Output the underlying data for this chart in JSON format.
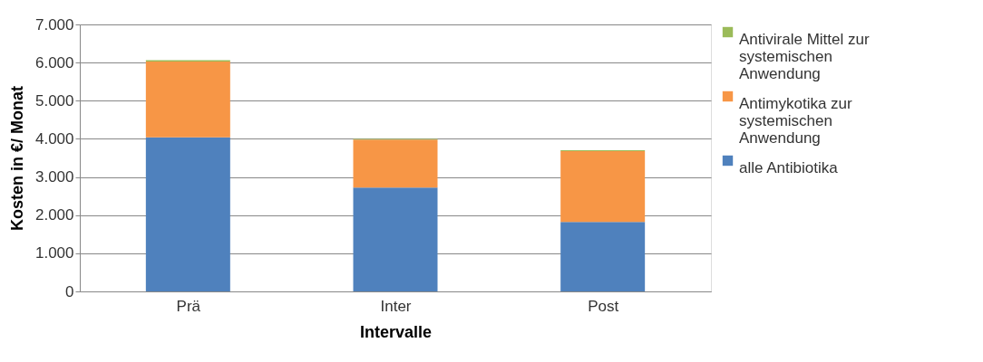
{
  "chart_data": {
    "type": "bar",
    "stacked": true,
    "xlabel": "Intervalle",
    "ylabel": "Kosten in €/ Monat",
    "categories": [
      "Prä",
      "Inter",
      "Post"
    ],
    "series": [
      {
        "name": "alle Antibiotika",
        "color": "#4f81bd",
        "values": [
          4040,
          2720,
          1820
        ]
      },
      {
        "name": "Antimykotika zur systemischen Anwendung",
        "color": "#f79646",
        "values": [
          1990,
          1260,
          1860
        ]
      },
      {
        "name": "Antivirale Mittel zur systemischen Anwendung",
        "color": "#9bbb59",
        "values": [
          30,
          20,
          20
        ]
      }
    ],
    "ylim": [
      0,
      7000
    ],
    "yticks": [
      {
        "value": 0,
        "label": "0"
      },
      {
        "value": 1000,
        "label": "1.000"
      },
      {
        "value": 2000,
        "label": "2.000"
      },
      {
        "value": 3000,
        "label": "3.000"
      },
      {
        "value": 4000,
        "label": "4.000"
      },
      {
        "value": 5000,
        "label": "5.000"
      },
      {
        "value": 6000,
        "label": "6.000"
      },
      {
        "value": 7000,
        "label": "7.000"
      }
    ],
    "grid": "y",
    "legend": "right"
  }
}
